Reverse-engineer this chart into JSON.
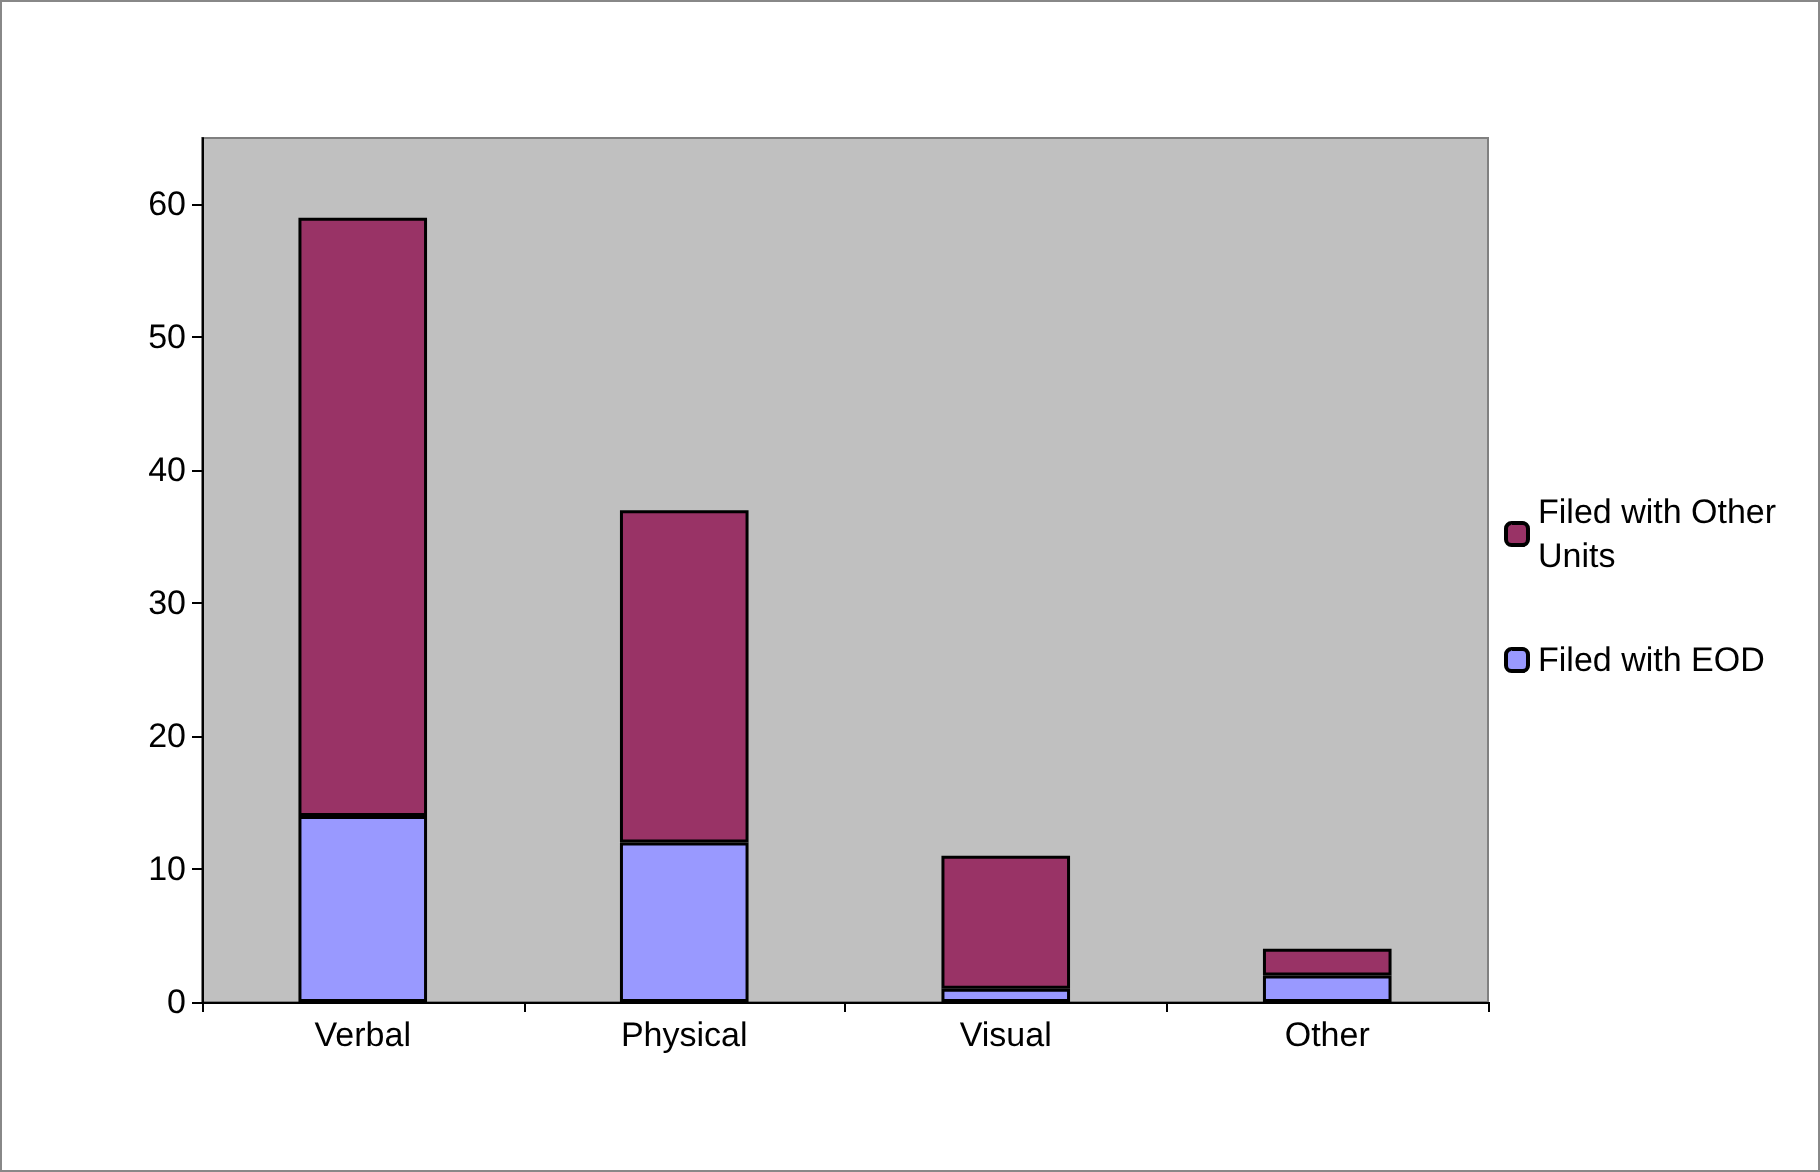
{
  "chart_data": {
    "type": "bar",
    "stacked": true,
    "categories": [
      "Verbal",
      "Physical",
      "Visual",
      "Other"
    ],
    "series": [
      {
        "name": "Filed with EOD",
        "color": "#9999ff",
        "values": [
          14,
          12,
          1,
          2
        ]
      },
      {
        "name": "Filed with Other Units",
        "color": "#993366",
        "values": [
          45,
          25,
          10,
          2
        ]
      }
    ],
    "ylim": [
      0,
      65
    ],
    "yticks": [
      0,
      10,
      20,
      30,
      40,
      50,
      60
    ],
    "grid": false,
    "legend": "right"
  }
}
